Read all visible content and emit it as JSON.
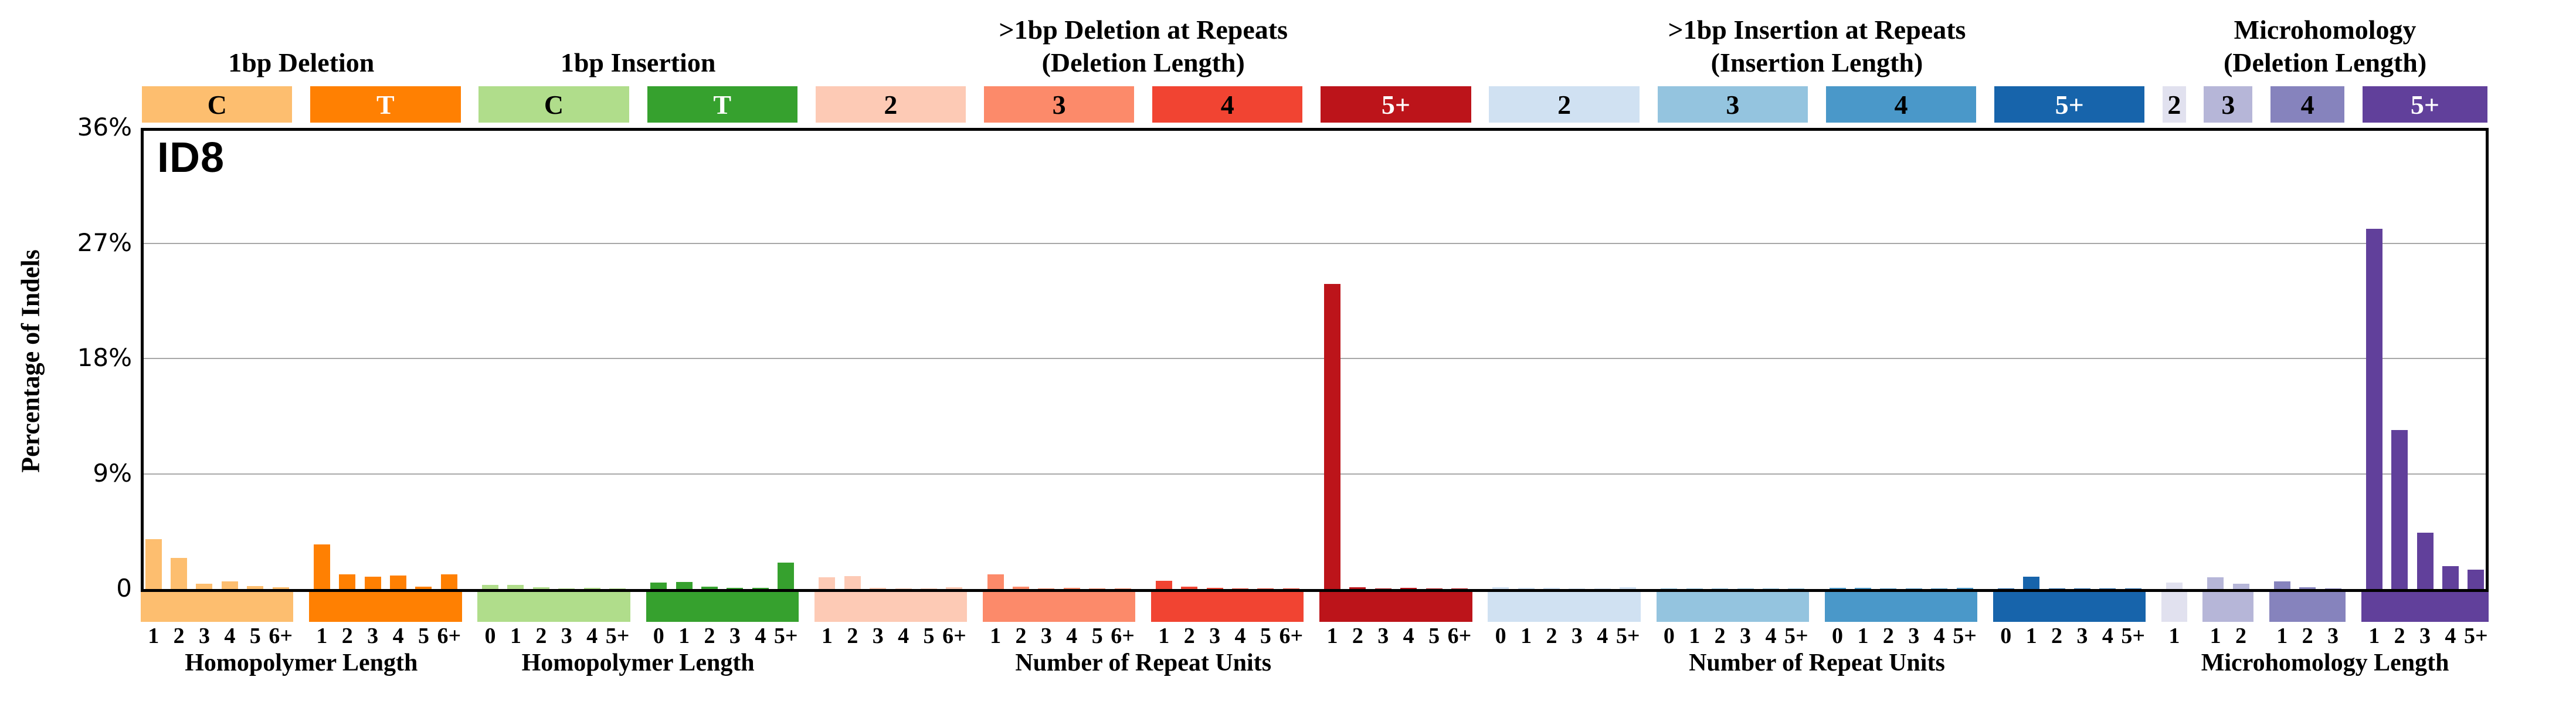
{
  "chart_data": {
    "type": "bar",
    "title": "ID8",
    "ylabel": "Percentage of Indels",
    "ylim": [
      0,
      36
    ],
    "yticks": [
      {
        "label": "36%",
        "value": 36
      },
      {
        "label": "27%",
        "value": 27
      },
      {
        "label": "18%",
        "value": 18
      },
      {
        "label": "9%",
        "value": 9
      },
      {
        "label": "0",
        "value": 0
      }
    ],
    "grid": "horizontal gridlines at 9%, 18%, 27%",
    "legend_position": "none",
    "sections": [
      {
        "title_lines": [
          "1bp Deletion"
        ],
        "group_span": [
          0,
          1
        ]
      },
      {
        "title_lines": [
          "1bp Insertion"
        ],
        "group_span": [
          2,
          3
        ]
      },
      {
        "title_lines": [
          ">1bp Deletion at Repeats",
          "(Deletion Length)"
        ],
        "group_span": [
          4,
          7
        ]
      },
      {
        "title_lines": [
          ">1bp Insertion at Repeats",
          "(Insertion Length)"
        ],
        "group_span": [
          8,
          11
        ]
      },
      {
        "title_lines": [
          "Microhomology",
          "(Deletion Length)"
        ],
        "group_span": [
          12,
          15
        ]
      }
    ],
    "groups": [
      {
        "name": "1bp-deletion-C",
        "box_label": "C",
        "color": "#FDBE6F",
        "box_text_color": "#000000",
        "bar_labels": [
          "1",
          "2",
          "3",
          "4",
          "5",
          "6+"
        ],
        "values": [
          3.9,
          2.45,
          0.4,
          0.6,
          0.25,
          0.15
        ]
      },
      {
        "name": "1bp-deletion-T",
        "box_label": "T",
        "color": "#FF8002",
        "box_text_color": "#ffffff",
        "bar_labels": [
          "1",
          "2",
          "3",
          "4",
          "5",
          "6+"
        ],
        "values": [
          3.5,
          1.15,
          0.95,
          1.05,
          0.2,
          1.15
        ]
      },
      {
        "name": "1bp-insertion-C",
        "box_label": "C",
        "color": "#B0DD8B",
        "box_text_color": "#000000",
        "bar_labels": [
          "0",
          "1",
          "2",
          "3",
          "4",
          "5+"
        ],
        "values": [
          0.3,
          0.3,
          0.15,
          0.05,
          0.08,
          0.05
        ]
      },
      {
        "name": "1bp-insertion-T",
        "box_label": "T",
        "color": "#36A12E",
        "box_text_color": "#ffffff",
        "bar_labels": [
          "0",
          "1",
          "2",
          "3",
          "4",
          "5+"
        ],
        "values": [
          0.5,
          0.55,
          0.2,
          0.1,
          0.1,
          2.05
        ]
      },
      {
        "name": "deletion-repeats-2",
        "box_label": "2",
        "color": "#FDCAB5",
        "box_text_color": "#000000",
        "bar_labels": [
          "1",
          "2",
          "3",
          "4",
          "5",
          "6+"
        ],
        "values": [
          0.9,
          1.0,
          0.1,
          0.04,
          0.06,
          0.12
        ]
      },
      {
        "name": "deletion-repeats-3",
        "box_label": "3",
        "color": "#FC8A6A",
        "box_text_color": "#000000",
        "bar_labels": [
          "1",
          "2",
          "3",
          "4",
          "5",
          "6+"
        ],
        "values": [
          1.15,
          0.2,
          0.05,
          0.08,
          0.03,
          0.03
        ]
      },
      {
        "name": "deletion-repeats-4",
        "box_label": "4",
        "color": "#F14432",
        "box_text_color": "#000000",
        "bar_labels": [
          "1",
          "2",
          "3",
          "4",
          "5",
          "6+"
        ],
        "values": [
          0.65,
          0.2,
          0.08,
          0.03,
          0.02,
          0.02
        ]
      },
      {
        "name": "deletion-repeats-5plus",
        "box_label": "5+",
        "color": "#BC141A",
        "box_text_color": "#ffffff",
        "bar_labels": [
          "1",
          "2",
          "3",
          "4",
          "5",
          "6+"
        ],
        "values": [
          23.8,
          0.12,
          0.03,
          0.1,
          0.02,
          0.02
        ]
      },
      {
        "name": "insertion-repeats-2",
        "box_label": "2",
        "color": "#D0E1F2",
        "box_text_color": "#000000",
        "bar_labels": [
          "0",
          "1",
          "2",
          "3",
          "4",
          "5+"
        ],
        "values": [
          0.15,
          0.1,
          0.07,
          0.02,
          0.02,
          0.15
        ]
      },
      {
        "name": "insertion-repeats-3",
        "box_label": "3",
        "color": "#94C4DF",
        "box_text_color": "#000000",
        "bar_labels": [
          "0",
          "1",
          "2",
          "3",
          "4",
          "5+"
        ],
        "values": [
          0.06,
          0.06,
          0.03,
          0.02,
          0.02,
          0.03
        ]
      },
      {
        "name": "insertion-repeats-4",
        "box_label": "4",
        "color": "#4A98C9",
        "box_text_color": "#000000",
        "bar_labels": [
          "0",
          "1",
          "2",
          "3",
          "4",
          "5+"
        ],
        "values": [
          0.1,
          0.1,
          0.03,
          0.02,
          0.02,
          0.08
        ]
      },
      {
        "name": "insertion-repeats-5plus",
        "box_label": "5+",
        "color": "#1764AB",
        "box_text_color": "#ffffff",
        "bar_labels": [
          "0",
          "1",
          "2",
          "3",
          "4",
          "5+"
        ],
        "values": [
          0.05,
          0.95,
          0.03,
          0.02,
          0.02,
          0.02
        ]
      },
      {
        "name": "microhomology-2",
        "box_label": "2",
        "color": "#E1E1EF",
        "box_text_color": "#000000",
        "bar_labels": [
          "1"
        ],
        "values": [
          0.5
        ]
      },
      {
        "name": "microhomology-3",
        "box_label": "3",
        "color": "#B6B6D8",
        "box_text_color": "#000000",
        "bar_labels": [
          "1",
          "2"
        ],
        "values": [
          0.9,
          0.4
        ]
      },
      {
        "name": "microhomology-4",
        "box_label": "4",
        "color": "#8683BD",
        "box_text_color": "#000000",
        "bar_labels": [
          "1",
          "2",
          "3"
        ],
        "values": [
          0.6,
          0.13,
          0.06
        ]
      },
      {
        "name": "microhomology-5plus",
        "box_label": "5+",
        "color": "#61409B",
        "box_text_color": "#ffffff",
        "bar_labels": [
          "1",
          "2",
          "3",
          "4",
          "5+"
        ],
        "values": [
          28.1,
          12.4,
          4.4,
          1.8,
          1.5
        ]
      }
    ],
    "footer_labels": [
      {
        "text": "Homopolymer Length",
        "group_span": [
          0,
          1
        ]
      },
      {
        "text": "Homopolymer Length",
        "group_span": [
          2,
          3
        ]
      },
      {
        "text": "Number of Repeat Units",
        "group_span": [
          4,
          7
        ]
      },
      {
        "text": "Number of Repeat Units",
        "group_span": [
          8,
          11
        ]
      },
      {
        "text": "Microhomology Length",
        "group_span": [
          12,
          15
        ]
      }
    ]
  },
  "colors": {
    "background": "#ffffff",
    "axis": "#000000",
    "gridline": "#a8a8a8"
  }
}
